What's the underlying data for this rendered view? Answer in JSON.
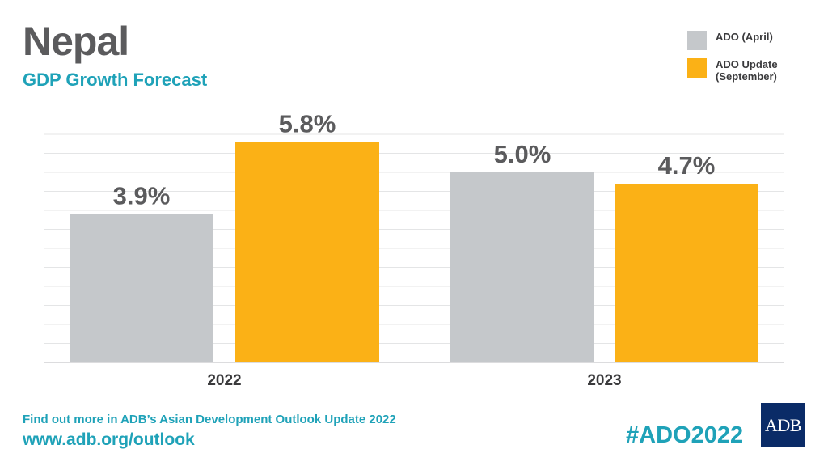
{
  "header": {
    "title": "Nepal",
    "subtitle": "GDP Growth Forecast"
  },
  "legend": {
    "items": [
      {
        "label": "ADO (April)",
        "color": "#c5c8cb"
      },
      {
        "label": "ADO Update (September)",
        "color": "#fbb116"
      }
    ]
  },
  "chart_data": {
    "type": "bar",
    "categories": [
      "2022",
      "2023"
    ],
    "series": [
      {
        "name": "ADO (April)",
        "values": [
          3.9,
          5.0
        ],
        "labels": [
          "3.9%",
          "5.0%"
        ],
        "color": "#c5c8cb"
      },
      {
        "name": "ADO Update (September)",
        "values": [
          5.8,
          4.7
        ],
        "labels": [
          "5.8%",
          "4.7%"
        ],
        "color": "#fbb116"
      }
    ],
    "ylim": [
      0,
      6
    ],
    "grid": true,
    "legend_position": "top-right"
  },
  "footer": {
    "note": "Find out more in ADB’s Asian Development Outlook Update 2022",
    "url": "www.adb.org/outlook",
    "hashtag": "#ADO2022",
    "logo_text": "ADB"
  }
}
